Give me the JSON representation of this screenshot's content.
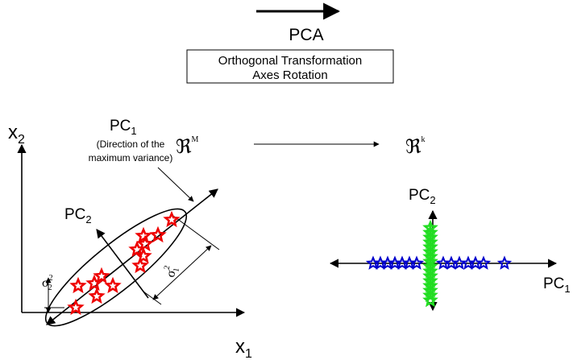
{
  "header": {
    "arrow_label": "PCA",
    "box_lines": [
      "Orthogonal Transformation",
      "Axes Rotation"
    ]
  },
  "left": {
    "y_axis": {
      "base": "x",
      "sub": "2"
    },
    "x_axis": {
      "base": "x",
      "sub": "1"
    },
    "pc1": {
      "base": "PC",
      "sub": "1",
      "note": [
        "(Direction of the",
        "maximum variance)"
      ]
    },
    "pc2": {
      "base": "PC",
      "sub": "2"
    },
    "sigma2": {
      "base": "σ",
      "sup": "2",
      "sub": "2"
    },
    "sigma1": {
      "base": "σ",
      "sup": "2",
      "sub": "1"
    }
  },
  "mapping": {
    "from": {
      "base": "ℜ",
      "sup": "M"
    },
    "to": {
      "base": "ℜ",
      "sup": "k"
    }
  },
  "right": {
    "pc2": {
      "base": "PC",
      "sub": "2"
    },
    "pc1": {
      "base": "PC",
      "sub": "1"
    }
  }
}
